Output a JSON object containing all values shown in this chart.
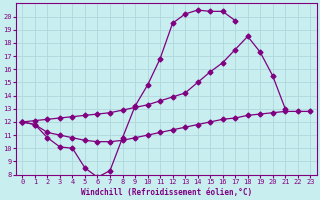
{
  "line1_x": [
    0,
    1,
    2,
    3,
    4,
    5,
    6,
    7,
    8,
    9,
    10,
    11,
    12,
    13,
    14,
    15,
    16,
    17
  ],
  "line1_y": [
    12.0,
    11.8,
    10.8,
    10.1,
    10.0,
    8.5,
    7.8,
    8.3,
    10.8,
    13.2,
    14.8,
    16.8,
    19.5,
    20.2,
    20.5,
    20.4,
    20.4,
    19.7
  ],
  "line2_x": [
    0,
    1,
    2,
    3,
    4,
    5,
    6,
    7,
    8,
    9,
    10,
    11,
    12,
    13,
    14,
    15,
    16,
    17,
    18,
    19,
    20,
    21
  ],
  "line2_y": [
    12.0,
    12.1,
    12.2,
    12.3,
    12.4,
    12.5,
    12.6,
    12.7,
    12.9,
    13.1,
    13.3,
    13.6,
    13.9,
    14.2,
    15.0,
    15.8,
    16.5,
    17.5,
    18.5,
    17.3,
    15.5,
    13.0
  ],
  "line3_x": [
    0,
    1,
    2,
    3,
    4,
    5,
    6,
    7,
    8,
    9,
    10,
    11,
    12,
    13,
    14,
    15,
    16,
    17,
    18,
    19,
    20,
    21,
    22,
    23
  ],
  "line3_y": [
    12.0,
    11.8,
    11.2,
    11.0,
    10.8,
    10.6,
    10.5,
    10.5,
    10.6,
    10.8,
    11.0,
    11.2,
    11.4,
    11.6,
    11.8,
    12.0,
    12.2,
    12.3,
    12.5,
    12.6,
    12.7,
    12.8,
    12.8,
    12.8
  ],
  "bg_color": "#c8eef0",
  "grid_color": "#b0d8dc",
  "line_color": "#800080",
  "xlabel": "Windchill (Refroidissement éolien,°C)",
  "ylim": [
    8,
    21
  ],
  "xlim": [
    -0.5,
    23.5
  ],
  "yticks": [
    8,
    9,
    10,
    11,
    12,
    13,
    14,
    15,
    16,
    17,
    18,
    19,
    20
  ],
  "xticks": [
    0,
    1,
    2,
    3,
    4,
    5,
    6,
    7,
    8,
    9,
    10,
    11,
    12,
    13,
    14,
    15,
    16,
    17,
    18,
    19,
    20,
    21,
    22,
    23
  ],
  "tick_fontsize": 5.0,
  "xlabel_fontsize": 5.5,
  "lw": 0.9,
  "marker_size": 2.5
}
